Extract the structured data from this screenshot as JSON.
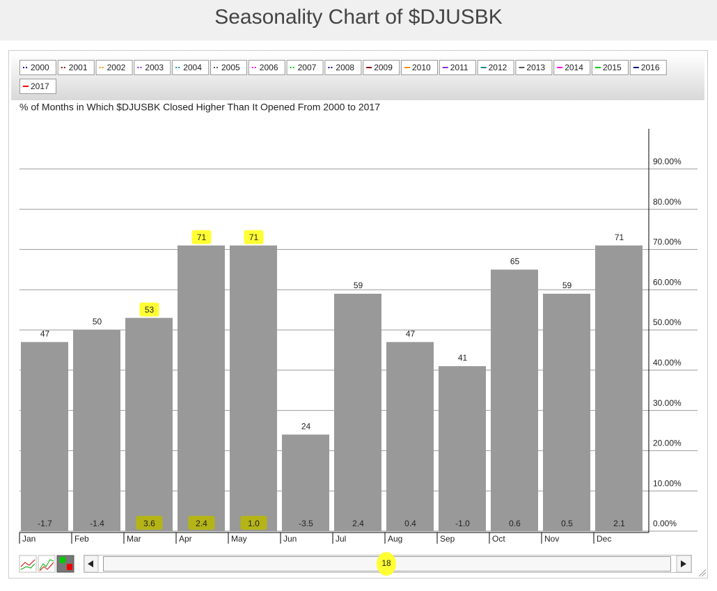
{
  "page_title": "Seasonality Chart of $DJUSBK",
  "chart_data": {
    "type": "bar",
    "title": "% of Months in Which $DJUSBK Closed Higher Than It Opened From 2000 to 2017",
    "categories": [
      "Jan",
      "Feb",
      "Mar",
      "Apr",
      "May",
      "Jun",
      "Jul",
      "Aug",
      "Sep",
      "Oct",
      "Nov",
      "Dec"
    ],
    "values": [
      47,
      50,
      53,
      71,
      71,
      24,
      59,
      47,
      41,
      65,
      59,
      71
    ],
    "avg_change_labels": [
      "-1.7",
      "-1.4",
      "3.6",
      "2.4",
      "1.0",
      "-3.5",
      "2.4",
      "0.4",
      "-1.0",
      "0.6",
      "0.5",
      "2.1"
    ],
    "color": "#999999",
    "ylim": [
      0,
      100
    ],
    "yticks": [
      {
        "value": 0,
        "label": "0.00%"
      },
      {
        "value": 10,
        "label": "10.00%"
      },
      {
        "value": 20,
        "label": "20.00%"
      },
      {
        "value": 30,
        "label": "30.00%"
      },
      {
        "value": 40,
        "label": "40.00%"
      },
      {
        "value": 50,
        "label": "50.00%"
      },
      {
        "value": 60,
        "label": "60.00%"
      },
      {
        "value": 70,
        "label": "70.00%"
      },
      {
        "value": 80,
        "label": "80.00%"
      },
      {
        "value": 90,
        "label": "90.00%"
      }
    ],
    "grid": true,
    "highlight": {
      "color": "#ffff33",
      "indices": [
        2,
        3,
        4
      ]
    },
    "legend": [
      {
        "name": "2000",
        "color": "#000080",
        "style": "dotted"
      },
      {
        "name": "2001",
        "color": "#8b0000",
        "style": "dotted"
      },
      {
        "name": "2002",
        "color": "#ff8c00",
        "style": "dotted"
      },
      {
        "name": "2003",
        "color": "#8a2be2",
        "style": "dotted"
      },
      {
        "name": "2004",
        "color": "#008b8b",
        "style": "dotted"
      },
      {
        "name": "2005",
        "color": "#555555",
        "style": "dotted"
      },
      {
        "name": "2006",
        "color": "#ff00ff",
        "style": "dotted"
      },
      {
        "name": "2007",
        "color": "#00cc00",
        "style": "dotted"
      },
      {
        "name": "2008",
        "color": "#000080",
        "style": "dotted"
      },
      {
        "name": "2009",
        "color": "#8b0000",
        "style": "solid"
      },
      {
        "name": "2010",
        "color": "#ff8c00",
        "style": "solid"
      },
      {
        "name": "2011",
        "color": "#8a2be2",
        "style": "solid"
      },
      {
        "name": "2012",
        "color": "#008b8b",
        "style": "solid"
      },
      {
        "name": "2013",
        "color": "#555555",
        "style": "solid"
      },
      {
        "name": "2014",
        "color": "#ff00ff",
        "style": "solid"
      },
      {
        "name": "2015",
        "color": "#00cc00",
        "style": "solid"
      },
      {
        "name": "2016",
        "color": "#000080",
        "style": "solid"
      },
      {
        "name": "2017",
        "color": "#ff0000",
        "style": "solid"
      }
    ],
    "slider_label": "18"
  }
}
